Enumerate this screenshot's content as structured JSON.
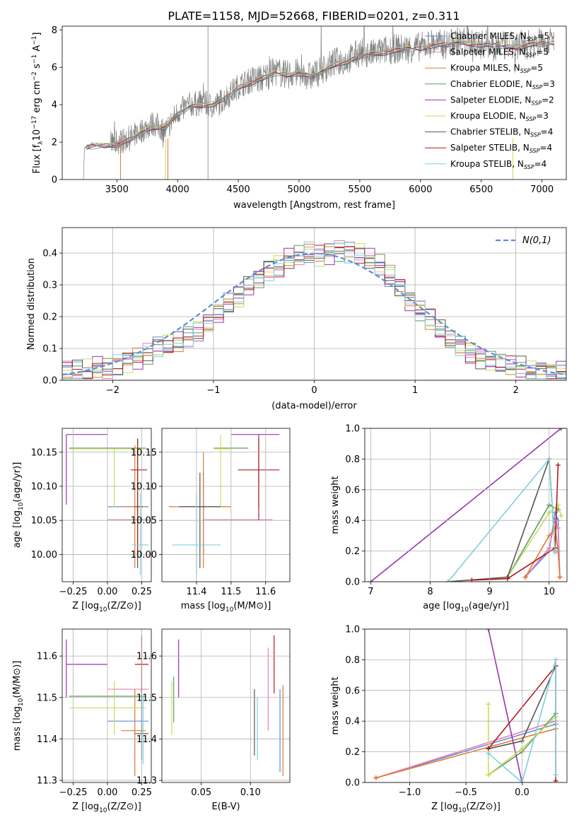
{
  "figure": {
    "title": "PLATE=1158, MJD=52668, FIBERID=0201, z=0.311"
  },
  "palette": {
    "chabrier_miles": "#5a8fd8",
    "salpeter_miles": "#e87fb8",
    "kroupa_miles": "#e07b2e",
    "chabrier_elodie": "#5f9a5f",
    "salpeter_elodie": "#9932b0",
    "kroupa_elodie": "#c4e05a",
    "chabrier_stelib": "#555555",
    "salpeter_stelib": "#b31b1b",
    "kroupa_stelib": "#7fd0dc",
    "data": "#808080",
    "normal": "#5a8fd8"
  },
  "chart_data": [
    {
      "id": "spectrum",
      "type": "line",
      "xlabel": "wavelength [Angstrom, rest frame]",
      "ylabel": "Flux [f_λ10^-17 erg cm^-2 s^-1 A^-1]",
      "xlim": [
        3050,
        7200
      ],
      "ylim": [
        0,
        8.2
      ],
      "xticks": [
        3500,
        4000,
        4500,
        5000,
        5500,
        6000,
        6500,
        7000
      ],
      "yticks": [
        0,
        2,
        4,
        6,
        8
      ],
      "grid": false,
      "legend": "right",
      "x": [
        3250,
        3300,
        3400,
        3500,
        3600,
        3700,
        3800,
        3900,
        4000,
        4100,
        4200,
        4300,
        4400,
        4500,
        4600,
        4700,
        4800,
        4900,
        5000,
        5100,
        5200,
        5300,
        5400,
        5500,
        5600,
        5700,
        5800,
        5900,
        6000,
        6100,
        6200,
        6300,
        6400,
        6500,
        6600,
        6700,
        6800,
        6900,
        7000,
        7100
      ],
      "data_flux": [
        1.7,
        1.9,
        1.8,
        2.0,
        2.2,
        2.6,
        3.0,
        2.6,
        3.6,
        4.0,
        4.1,
        3.9,
        4.4,
        5.0,
        5.3,
        5.4,
        5.8,
        5.6,
        5.7,
        5.5,
        5.9,
        6.3,
        6.4,
        6.8,
        6.7,
        6.9,
        7.0,
        7.0,
        7.1,
        7.3,
        7.2,
        7.4,
        7.4,
        7.2,
        7.3,
        7.1,
        7.2,
        7.2,
        7.4,
        7.4
      ],
      "model_flux": [
        1.7,
        1.8,
        1.8,
        1.9,
        2.1,
        2.5,
        2.8,
        2.8,
        3.5,
        3.9,
        4.0,
        4.0,
        4.4,
        4.9,
        5.2,
        5.4,
        5.7,
        5.6,
        5.7,
        5.5,
        5.8,
        6.2,
        6.3,
        6.6,
        6.7,
        6.8,
        6.9,
        7.0,
        7.0,
        7.2,
        7.2,
        7.3,
        7.3,
        7.2,
        7.2,
        7.1,
        7.1,
        7.2,
        7.3,
        7.3
      ],
      "series": [
        {
          "name": "Chabrier MILES, N_SSP=5",
          "label_main": "Chabrier MILES, N",
          "color_key": "chabrier_miles",
          "nssp": 5
        },
        {
          "name": "Salpeter MILES, N_SSP=5",
          "label_main": "Salpeter MILES, N",
          "color_key": "salpeter_miles",
          "nssp": 5
        },
        {
          "name": "Kroupa MILES, N_SSP=5",
          "label_main": "Kroupa MILES, N",
          "color_key": "kroupa_miles",
          "nssp": 5
        },
        {
          "name": "Chabrier ELODIE, N_SSP=3",
          "label_main": "Chabrier ELODIE, N",
          "color_key": "chabrier_elodie",
          "nssp": 3
        },
        {
          "name": "Salpeter ELODIE, N_SSP=2",
          "label_main": "Salpeter ELODIE, N",
          "color_key": "salpeter_elodie",
          "nssp": 2
        },
        {
          "name": "Kroupa ELODIE, N_SSP=3",
          "label_main": "Kroupa ELODIE, N",
          "color_key": "kroupa_elodie",
          "nssp": 3
        },
        {
          "name": "Chabrier STELIB, N_SSP=4",
          "label_main": "Chabrier STELIB, N",
          "color_key": "chabrier_stelib",
          "nssp": 4
        },
        {
          "name": "Salpeter STELIB, N_SSP=4",
          "label_main": "Salpeter STELIB, N",
          "color_key": "salpeter_stelib",
          "nssp": 4
        },
        {
          "name": "Kroupa STELIB, N_SSP=4",
          "label_main": "Kroupa STELIB, N",
          "color_key": "kroupa_stelib",
          "nssp": 4
        }
      ],
      "legend_sub": "SSP"
    },
    {
      "id": "residuals",
      "type": "line",
      "xlabel": "(data-model)/error",
      "ylabel": "Normed distribution",
      "xlim": [
        -2.5,
        2.5
      ],
      "ylim": [
        0,
        0.48
      ],
      "xticks": [
        -2,
        -1,
        0,
        1,
        2
      ],
      "yticks": [
        0.0,
        0.1,
        0.2,
        0.3,
        0.4
      ],
      "grid": true,
      "legend": "top-right",
      "legend_label": "N(0,1)",
      "bin_width": 0.1,
      "histogram": [
        0.03,
        0.03,
        0.03,
        0.04,
        0.04,
        0.05,
        0.06,
        0.07,
        0.08,
        0.1,
        0.11,
        0.12,
        0.14,
        0.16,
        0.18,
        0.21,
        0.24,
        0.26,
        0.3,
        0.32,
        0.35,
        0.36,
        0.38,
        0.39,
        0.4,
        0.39,
        0.4,
        0.41,
        0.4,
        0.4,
        0.38,
        0.36,
        0.33,
        0.29,
        0.25,
        0.22,
        0.19,
        0.16,
        0.13,
        0.11,
        0.09,
        0.07,
        0.06,
        0.05,
        0.04,
        0.04,
        0.03,
        0.03,
        0.03,
        0.03
      ]
    },
    {
      "id": "age_vs_Z",
      "type": "scatter",
      "xlabel": "Z [log10(Z/Z⊙)]",
      "ylabel": "age  [log10(age/yr)]",
      "xlim": [
        -0.33,
        0.32
      ],
      "ylim": [
        9.96,
        10.185
      ],
      "xticks": [
        -0.25,
        0.0,
        0.25
      ],
      "yticks": [
        10.0,
        10.05,
        10.1,
        10.15
      ],
      "points": [
        {
          "key": "chabrier_miles",
          "x": 0.15,
          "xlo": 0.0,
          "xhi": 0.3,
          "y": 10.07,
          "ylo": 10.07,
          "yhi": 10.07
        },
        {
          "key": "salpeter_miles",
          "x": 0.15,
          "xlo": 0.0,
          "xhi": 0.3,
          "y": 10.051,
          "ylo": 10.051,
          "yhi": 10.051
        },
        {
          "key": "kroupa_miles",
          "x": 0.2,
          "xlo": 0.12,
          "xhi": 0.28,
          "y": 10.07,
          "ylo": 9.98,
          "yhi": 10.16
        },
        {
          "key": "chabrier_elodie",
          "x": 0.0,
          "xlo": -0.28,
          "xhi": 0.28,
          "y": 10.156,
          "ylo": 10.156,
          "yhi": 10.156
        },
        {
          "key": "salpeter_elodie",
          "x": -0.3,
          "xlo": -0.3,
          "xhi": 0.0,
          "y": 10.176,
          "ylo": 10.073,
          "yhi": 10.176
        },
        {
          "key": "kroupa_elodie",
          "x": 0.05,
          "xlo": -0.28,
          "xhi": 0.28,
          "y": 10.155,
          "ylo": 10.07,
          "yhi": 10.155
        },
        {
          "key": "chabrier_stelib",
          "x": 0.22,
          "xlo": 0.2,
          "xhi": 0.26,
          "y": 10.07,
          "ylo": 9.98,
          "yhi": 10.17
        },
        {
          "key": "salpeter_stelib",
          "x": 0.22,
          "xlo": 0.17,
          "xhi": 0.29,
          "y": 10.124,
          "ylo": 10.0,
          "yhi": 10.17
        },
        {
          "key": "kroupa_stelib",
          "x": 0.24,
          "xlo": 0.18,
          "xhi": 0.3,
          "y": 10.014,
          "ylo": 9.97,
          "yhi": 10.09
        }
      ]
    },
    {
      "id": "age_vs_mass",
      "type": "scatter",
      "xlabel": "mass [log10(M/M⊙)]",
      "ylabel": "",
      "xlim": [
        11.3,
        11.67
      ],
      "ylim": [
        9.96,
        10.185
      ],
      "xticks": [
        11.4,
        11.5,
        11.6
      ],
      "yticks": [
        10.0,
        10.05,
        10.1,
        10.15
      ],
      "points": [
        {
          "key": "chabrier_miles",
          "x": 11.42,
          "xlo": 11.35,
          "xhi": 11.5,
          "y": 10.07,
          "ylo": 10.0,
          "yhi": 10.12
        },
        {
          "key": "salpeter_miles",
          "x": 11.52,
          "xlo": 11.42,
          "xhi": 11.62,
          "y": 10.051,
          "ylo": 10.051,
          "yhi": 10.051
        },
        {
          "key": "kroupa_miles",
          "x": 11.42,
          "xlo": 11.32,
          "xhi": 11.5,
          "y": 10.07,
          "ylo": 9.98,
          "yhi": 10.15
        },
        {
          "key": "chabrier_elodie",
          "x": 11.5,
          "xlo": 11.45,
          "xhi": 11.55,
          "y": 10.156,
          "ylo": 10.156,
          "yhi": 10.156
        },
        {
          "key": "salpeter_elodie",
          "x": 11.58,
          "xlo": 11.5,
          "xhi": 11.64,
          "y": 10.176,
          "ylo": 10.07,
          "yhi": 10.176
        },
        {
          "key": "kroupa_elodie",
          "x": 11.47,
          "xlo": 11.45,
          "xhi": 11.5,
          "y": 10.155,
          "ylo": 10.07,
          "yhi": 10.175
        },
        {
          "key": "chabrier_stelib",
          "x": 11.41,
          "xlo": 11.35,
          "xhi": 11.47,
          "y": 10.07,
          "ylo": 9.98,
          "yhi": 10.12
        },
        {
          "key": "salpeter_stelib",
          "x": 11.58,
          "xlo": 11.52,
          "xhi": 11.64,
          "y": 10.124,
          "ylo": 10.05,
          "yhi": 10.17
        },
        {
          "key": "kroupa_stelib",
          "x": 11.4,
          "xlo": 11.33,
          "xhi": 11.47,
          "y": 10.014,
          "ylo": 9.97,
          "yhi": 10.09
        }
      ]
    },
    {
      "id": "weight_vs_age",
      "type": "line",
      "xlabel": "age  [log10(age/yr)]",
      "ylabel": "mass weight",
      "xlim": [
        6.9,
        10.3
      ],
      "ylim": [
        0,
        1.0
      ],
      "xticks": [
        7,
        8,
        9,
        10
      ],
      "yticks": [
        0.0,
        0.2,
        0.4,
        0.6,
        0.8,
        1.0
      ],
      "grid": true,
      "series": [
        {
          "key": "chabrier_miles",
          "x": [
            9.6,
            10.0,
            10.1,
            10.15,
            10.18
          ],
          "y": [
            0.03,
            0.2,
            0.45,
            0.4,
            0.03
          ]
        },
        {
          "key": "salpeter_miles",
          "x": [
            9.6,
            10.0,
            10.1,
            10.15,
            10.18
          ],
          "y": [
            0.03,
            0.22,
            0.4,
            0.35,
            0.03
          ]
        },
        {
          "key": "kroupa_miles",
          "x": [
            9.6,
            10.0,
            10.1,
            10.15,
            10.18
          ],
          "y": [
            0.03,
            0.3,
            0.35,
            0.2,
            0.03
          ]
        },
        {
          "key": "chabrier_elodie",
          "x": [
            9.3,
            10.0,
            10.15
          ],
          "y": [
            0.03,
            0.5,
            0.47
          ]
        },
        {
          "key": "salpeter_elodie",
          "x": [
            7.0,
            10.2
          ],
          "y": [
            0.0,
            1.0
          ]
        },
        {
          "key": "kroupa_elodie",
          "x": [
            9.3,
            10.0,
            10.15,
            10.2
          ],
          "y": [
            0.03,
            0.45,
            0.5,
            0.43
          ]
        },
        {
          "key": "chabrier_stelib",
          "x": [
            8.3,
            9.3,
            10.0,
            10.1
          ],
          "y": [
            0.0,
            0.03,
            0.8,
            0.2
          ]
        },
        {
          "key": "salpeter_stelib",
          "x": [
            8.7,
            9.3,
            10.1,
            10.15
          ],
          "y": [
            0.01,
            0.02,
            0.22,
            0.76
          ]
        },
        {
          "key": "kroupa_stelib",
          "x": [
            8.3,
            10.0,
            10.1
          ],
          "y": [
            0.0,
            0.8,
            0.19
          ]
        }
      ]
    },
    {
      "id": "mass_vs_Z",
      "type": "scatter",
      "xlabel": "Z [log10(Z/Z⊙)]",
      "ylabel": "mass [log10(M/M⊙)]",
      "xlim": [
        -0.33,
        0.32
      ],
      "ylim": [
        11.295,
        11.665
      ],
      "xticks": [
        -0.25,
        0.0,
        0.25
      ],
      "yticks": [
        11.3,
        11.4,
        11.5,
        11.6
      ],
      "points": [
        {
          "key": "chabrier_miles",
          "x": 0.15,
          "xlo": 0.0,
          "xhi": 0.3,
          "y": 11.443,
          "ylo": 11.443,
          "yhi": 11.443
        },
        {
          "key": "salpeter_miles",
          "x": 0.2,
          "xlo": 0.0,
          "xhi": 0.3,
          "y": 11.52,
          "ylo": 11.52,
          "yhi": 11.52
        },
        {
          "key": "kroupa_miles",
          "x": 0.2,
          "xlo": 0.1,
          "xhi": 0.28,
          "y": 11.42,
          "ylo": 11.31,
          "yhi": 11.52
        },
        {
          "key": "chabrier_elodie",
          "x": 0.0,
          "xlo": -0.28,
          "xhi": 0.28,
          "y": 11.503,
          "ylo": 11.503,
          "yhi": 11.503
        },
        {
          "key": "salpeter_elodie",
          "x": -0.3,
          "xlo": -0.3,
          "xhi": 0.0,
          "y": 11.58,
          "ylo": 11.5,
          "yhi": 11.64
        },
        {
          "key": "kroupa_elodie",
          "x": 0.05,
          "xlo": -0.28,
          "xhi": 0.28,
          "y": 11.475,
          "ylo": 11.41,
          "yhi": 11.54
        },
        {
          "key": "chabrier_stelib",
          "x": 0.25,
          "xlo": 0.2,
          "xhi": 0.3,
          "y": 11.413,
          "ylo": 11.35,
          "yhi": 11.52
        },
        {
          "key": "salpeter_stelib",
          "x": 0.25,
          "xlo": 0.2,
          "xhi": 0.3,
          "y": 11.58,
          "ylo": 11.51,
          "yhi": 11.65
        },
        {
          "key": "kroupa_stelib",
          "x": 0.26,
          "xlo": 0.2,
          "xhi": 0.3,
          "y": 11.4,
          "ylo": 11.34,
          "yhi": 11.5
        }
      ]
    },
    {
      "id": "mass_vs_ebv",
      "type": "scatter",
      "xlabel": "E(B-V)",
      "ylabel": "",
      "xlim": [
        0.01,
        0.14
      ],
      "ylim": [
        11.295,
        11.665
      ],
      "xticks": [
        0.05,
        0.1
      ],
      "yticks": [
        11.3,
        11.4,
        11.5,
        11.6
      ],
      "points": [
        {
          "key": "chabrier_miles",
          "x": 0.13,
          "y": 11.443,
          "ylo": 11.32,
          "yhi": 11.52
        },
        {
          "key": "salpeter_miles",
          "x": 0.118,
          "y": 11.52,
          "ylo": 11.42,
          "yhi": 11.62
        },
        {
          "key": "kroupa_miles",
          "x": 0.133,
          "y": 11.42,
          "ylo": 11.31,
          "yhi": 11.53
        },
        {
          "key": "chabrier_elodie",
          "x": 0.022,
          "y": 11.503,
          "ylo": 11.44,
          "yhi": 11.55
        },
        {
          "key": "salpeter_elodie",
          "x": 0.027,
          "y": 11.58,
          "ylo": 11.5,
          "yhi": 11.64
        },
        {
          "key": "kroupa_elodie",
          "x": 0.02,
          "y": 11.475,
          "ylo": 11.41,
          "yhi": 11.54
        },
        {
          "key": "chabrier_stelib",
          "x": 0.104,
          "y": 11.413,
          "ylo": 11.36,
          "yhi": 11.52
        },
        {
          "key": "salpeter_stelib",
          "x": 0.124,
          "y": 11.58,
          "ylo": 11.51,
          "yhi": 11.65
        },
        {
          "key": "kroupa_stelib",
          "x": 0.107,
          "y": 11.4,
          "ylo": 11.35,
          "yhi": 11.5
        }
      ]
    },
    {
      "id": "weight_vs_Z",
      "type": "line",
      "xlabel": "Z [log10(Z/Z⊙)]",
      "ylabel": "mass weight",
      "xlim": [
        -1.4,
        0.4
      ],
      "ylim": [
        0,
        1.0
      ],
      "xticks": [
        -1.0,
        -0.5,
        0.0
      ],
      "yticks": [
        0.0,
        0.2,
        0.4,
        0.6,
        0.8,
        1.0
      ],
      "grid": true,
      "series": [
        {
          "key": "chabrier_miles",
          "x": [
            -1.3,
            0.3
          ],
          "y": [
            0.03,
            0.38
          ]
        },
        {
          "key": "salpeter_miles",
          "x": [
            -1.3,
            0.3
          ],
          "y": [
            0.03,
            0.4
          ]
        },
        {
          "key": "kroupa_miles",
          "x": [
            -1.3,
            0.3
          ],
          "y": [
            0.03,
            0.35
          ]
        },
        {
          "key": "chabrier_elodie",
          "x": [
            -0.3,
            0.0,
            0.3
          ],
          "y": [
            0.05,
            0.2,
            0.45
          ]
        },
        {
          "key": "salpeter_elodie",
          "x": [
            -0.3,
            0.0
          ],
          "y": [
            1.0,
            0.0
          ]
        },
        {
          "key": "kroupa_elodie",
          "x": [
            -0.3,
            -0.3,
            0.0,
            0.3
          ],
          "y": [
            0.51,
            0.05,
            0.22,
            0.43
          ]
        },
        {
          "key": "chabrier_stelib",
          "x": [
            -0.3,
            0.0,
            0.3
          ],
          "y": [
            0.22,
            0.27,
            0.76
          ]
        },
        {
          "key": "salpeter_stelib",
          "x": [
            -0.3,
            0.3,
            0.3
          ],
          "y": [
            0.22,
            0.76,
            0.01
          ]
        },
        {
          "key": "kroupa_stelib",
          "x": [
            -0.3,
            0.0,
            0.3,
            0.3
          ],
          "y": [
            0.19,
            0.0,
            0.8,
            0.05
          ]
        }
      ]
    }
  ]
}
